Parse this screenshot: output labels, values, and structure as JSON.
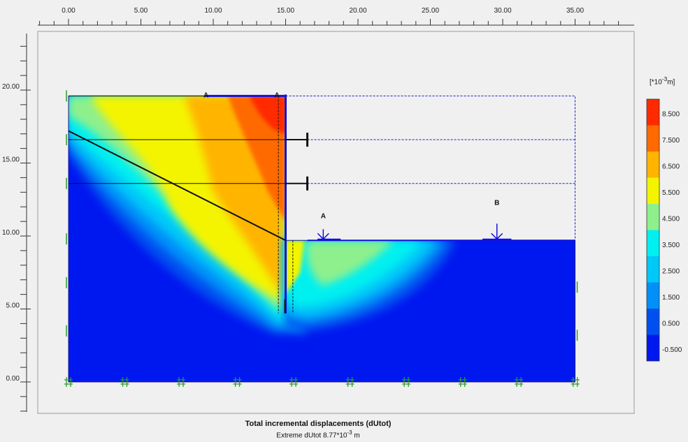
{
  "ruler": {
    "x_labels": [
      "0.00",
      "5.00",
      "10.00",
      "15.00",
      "20.00",
      "25.00",
      "30.00",
      "35.00"
    ],
    "y_labels": [
      "20.00",
      "15.00",
      "10.00",
      "5.00",
      "0.00"
    ]
  },
  "model": {
    "wall_x": 15.0,
    "surface_y": 19.6,
    "excavation_y": 9.7,
    "wall_toe_y": 4.7,
    "anchors_y": [
      16.6,
      13.6
    ],
    "anchor_end_x": 16.5,
    "slip_line": {
      "from": [
        0.0,
        17.2
      ],
      "to": [
        15.0,
        9.7
      ]
    },
    "extent": {
      "x": [
        0,
        35
      ],
      "y": [
        0,
        19.6
      ]
    },
    "point_labels": {
      "a_top_left": "A",
      "a_top_right": "A",
      "a_load": "A",
      "b_load": "B"
    }
  },
  "legend": {
    "unit": "[*10",
    "unit_exp": "-3",
    "unit_tail": "m]",
    "values": [
      "8.500",
      "7.500",
      "6.500",
      "5.500",
      "4.500",
      "3.500",
      "2.500",
      "1.500",
      "0.500",
      "-0.500"
    ],
    "colors": [
      "#ff2a00",
      "#ff6a00",
      "#ffb400",
      "#f4f400",
      "#8ef08c",
      "#00f0f0",
      "#00c8f8",
      "#0090f8",
      "#0050f0",
      "#0018f0"
    ]
  },
  "caption": {
    "title": "Total incremental displacements (dUtot)",
    "subtitle_pre": "Extreme dUtot 8.77*10",
    "subtitle_exp": "-3",
    "subtitle_post": " m"
  }
}
